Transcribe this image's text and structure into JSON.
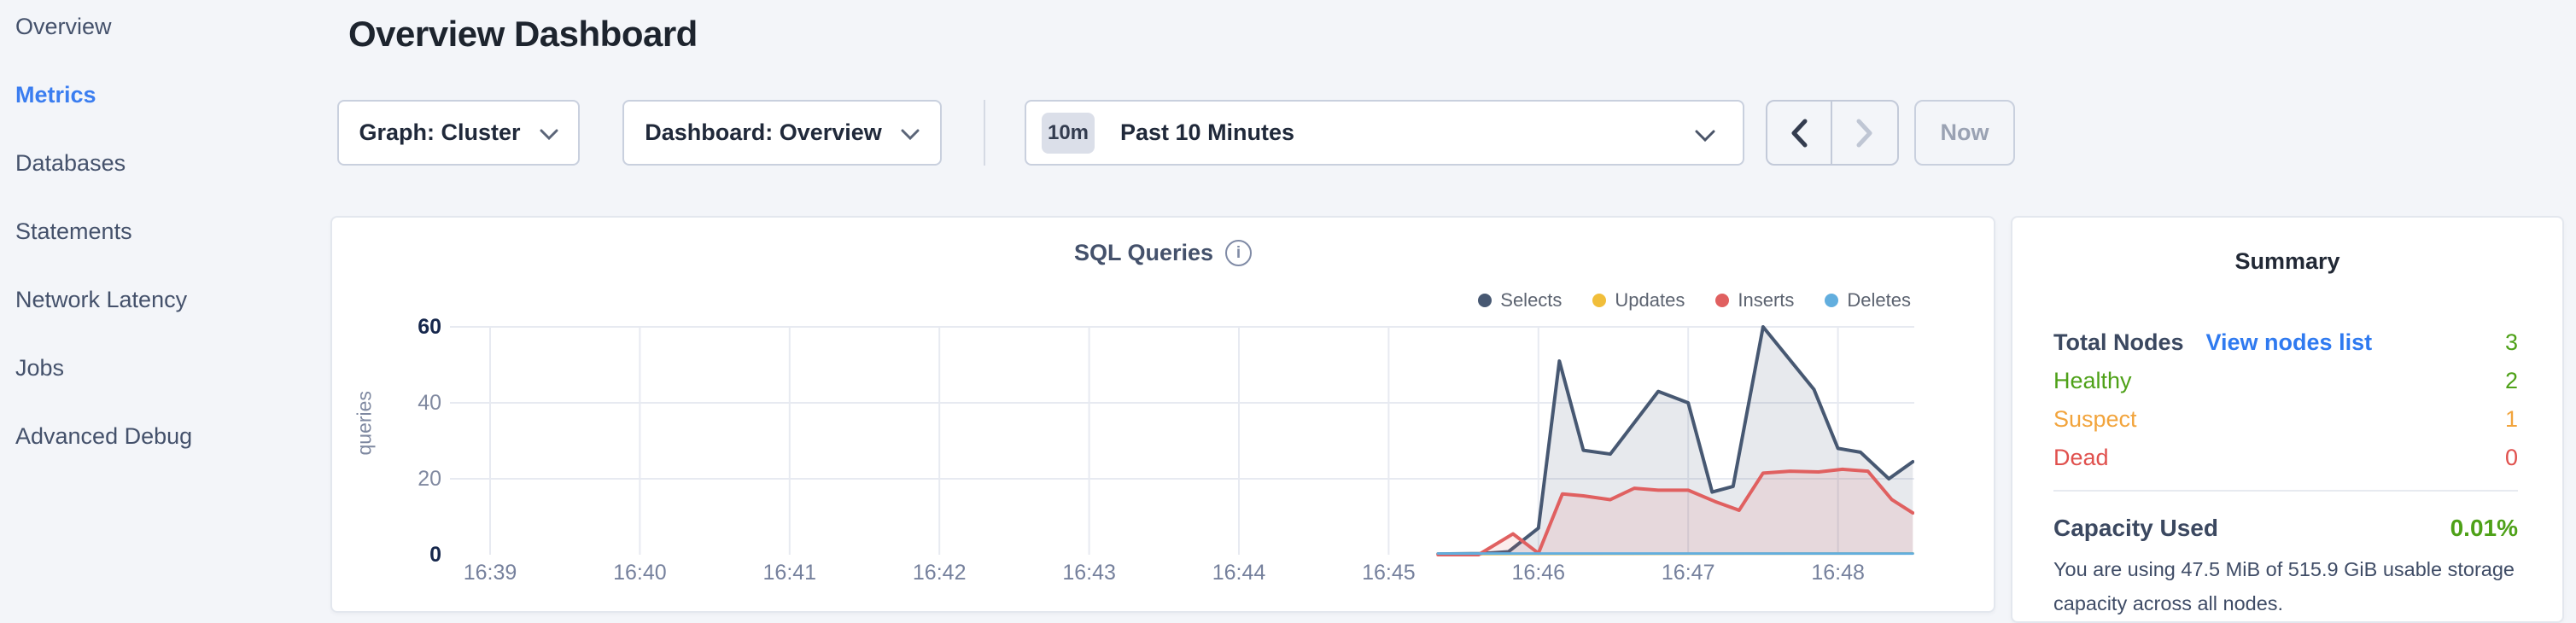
{
  "sidebar": {
    "items": [
      {
        "label": "Overview",
        "active": false
      },
      {
        "label": "Metrics",
        "active": true
      },
      {
        "label": "Databases",
        "active": false
      },
      {
        "label": "Statements",
        "active": false
      },
      {
        "label": "Network Latency",
        "active": false
      },
      {
        "label": "Jobs",
        "active": false
      },
      {
        "label": "Advanced Debug",
        "active": false
      }
    ],
    "active_color": "#3a7df0"
  },
  "header": {
    "title": "Overview Dashboard"
  },
  "controls": {
    "graph_dropdown": {
      "label": "Graph: Cluster"
    },
    "dashboard_dropdown": {
      "label": "Dashboard: Overview"
    },
    "time_selector": {
      "badge": "10m",
      "label": "Past 10 Minutes"
    },
    "prev_button": {
      "icon": "chevron-left",
      "enabled": true
    },
    "next_button": {
      "icon": "chevron-right",
      "enabled": false
    },
    "now_button": {
      "label": "Now"
    }
  },
  "chart_data": {
    "type": "area",
    "title": "SQL Queries",
    "ylabel": "queries",
    "xlabel": "",
    "grid": true,
    "legend_position": "top-right",
    "ylim": [
      0,
      60
    ],
    "x_labels": [
      "16:39",
      "16:40",
      "16:41",
      "16:42",
      "16:43",
      "16:44",
      "16:45",
      "16:46",
      "16:47",
      "16:48"
    ],
    "x_unit": "minutes since 16:39",
    "y_ticks": [
      {
        "v": 60,
        "label": "60",
        "emph": true
      },
      {
        "v": 40,
        "label": "40",
        "emph": false
      },
      {
        "v": 20,
        "label": "20",
        "emph": false
      },
      {
        "v": 0,
        "label": "0",
        "emph": true
      }
    ],
    "series": [
      {
        "name": "Selects",
        "color": "#475872",
        "fill": "rgba(71,88,114,0.13)",
        "width": 4,
        "points": [
          [
            6.33,
            0.2
          ],
          [
            6.62,
            0.3
          ],
          [
            6.8,
            0.8
          ],
          [
            7.0,
            7
          ],
          [
            7.14,
            51
          ],
          [
            7.3,
            27.5
          ],
          [
            7.48,
            26.5
          ],
          [
            7.8,
            43
          ],
          [
            8.0,
            40
          ],
          [
            8.16,
            16.5
          ],
          [
            8.3,
            18
          ],
          [
            8.5,
            60
          ],
          [
            8.84,
            43.5
          ],
          [
            9.0,
            28
          ],
          [
            9.15,
            27
          ],
          [
            9.34,
            20
          ],
          [
            9.5,
            24.5
          ]
        ]
      },
      {
        "name": "Updates",
        "color": "#f1be3a",
        "fill": "rgba(241,190,58,0.18)",
        "width": 3,
        "points": [
          [
            6.33,
            0.15
          ],
          [
            9.5,
            0.35
          ]
        ]
      },
      {
        "name": "Inserts",
        "color": "#e06060",
        "fill": "rgba(224,96,96,0.12)",
        "width": 4,
        "points": [
          [
            6.33,
            0
          ],
          [
            6.6,
            0
          ],
          [
            6.83,
            5.5
          ],
          [
            7.0,
            0.4
          ],
          [
            7.16,
            16
          ],
          [
            7.3,
            15.5
          ],
          [
            7.48,
            14.5
          ],
          [
            7.64,
            17.5
          ],
          [
            7.8,
            17
          ],
          [
            8.0,
            17
          ],
          [
            8.18,
            14
          ],
          [
            8.34,
            11.7
          ],
          [
            8.5,
            21.5
          ],
          [
            8.68,
            22
          ],
          [
            8.87,
            21.8
          ],
          [
            9.03,
            22.5
          ],
          [
            9.2,
            22
          ],
          [
            9.36,
            14.5
          ],
          [
            9.5,
            11
          ]
        ]
      },
      {
        "name": "Deletes",
        "color": "#62aede",
        "fill": "rgba(98,174,222,0.18)",
        "width": 3,
        "points": [
          [
            6.33,
            0.3
          ],
          [
            9.5,
            0.3
          ]
        ]
      }
    ],
    "legend_order": [
      "Selects",
      "Updates",
      "Inserts",
      "Deletes"
    ]
  },
  "summary": {
    "title": "Summary",
    "rows": [
      {
        "label": "Total Nodes",
        "bold": true,
        "label_color": "#3b4860",
        "link": "View nodes list",
        "value": "3",
        "value_color": "#4ea118"
      },
      {
        "label": "Healthy",
        "bold": false,
        "label_color": "#4ea118",
        "link": null,
        "value": "2",
        "value_color": "#4ea118"
      },
      {
        "label": "Suspect",
        "bold": false,
        "label_color": "#f2a43c",
        "link": null,
        "value": "1",
        "value_color": "#f2a43c"
      },
      {
        "label": "Dead",
        "bold": false,
        "label_color": "#e0504d",
        "link": null,
        "value": "0",
        "value_color": "#e0504d"
      }
    ],
    "capacity": {
      "label": "Capacity Used",
      "value": "0.01%",
      "value_color": "#4ea118",
      "description": "You are using 47.5 MiB of 515.9 GiB usable storage capacity across all nodes."
    }
  }
}
